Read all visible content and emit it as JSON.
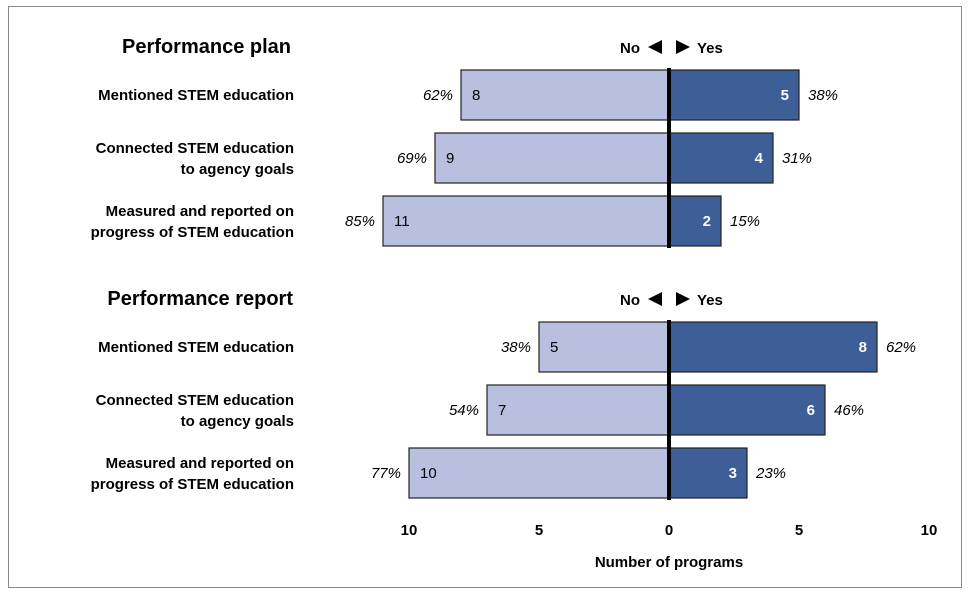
{
  "chart_data": {
    "type": "bar",
    "orientation": "horizontal-diverging",
    "legend": {
      "no": "No",
      "yes": "Yes"
    },
    "xlabel": "Number of programs",
    "xlim": [
      -10,
      10
    ],
    "tick_values": [
      -10,
      -5,
      0,
      5,
      10
    ],
    "tick_labels": [
      "10",
      "5",
      "0",
      "5",
      "10"
    ],
    "colors": {
      "no": "#b8bfdf",
      "yes": "#3e5e98",
      "axis": "#000000",
      "edge": "#222222"
    },
    "panels": [
      {
        "title": "Performance plan",
        "rows": [
          {
            "label": [
              "Mentioned STEM education"
            ],
            "no": 8,
            "yes": 5,
            "no_pct": "62%",
            "yes_pct": "38%"
          },
          {
            "label": [
              "Connected STEM education",
              "to agency goals"
            ],
            "no": 9,
            "yes": 4,
            "no_pct": "69%",
            "yes_pct": "31%"
          },
          {
            "label": [
              "Measured and reported on",
              "progress of STEM education"
            ],
            "no": 11,
            "yes": 2,
            "no_pct": "85%",
            "yes_pct": "15%"
          }
        ]
      },
      {
        "title": "Performance report",
        "rows": [
          {
            "label": [
              "Mentioned STEM education"
            ],
            "no": 5,
            "yes": 8,
            "no_pct": "38%",
            "yes_pct": "62%"
          },
          {
            "label": [
              "Connected STEM education",
              "to agency goals"
            ],
            "no": 7,
            "yes": 6,
            "no_pct": "54%",
            "yes_pct": "46%"
          },
          {
            "label": [
              "Measured and reported on",
              "progress of STEM education"
            ],
            "no": 10,
            "yes": 3,
            "no_pct": "77%",
            "yes_pct": "23%"
          }
        ]
      }
    ]
  }
}
